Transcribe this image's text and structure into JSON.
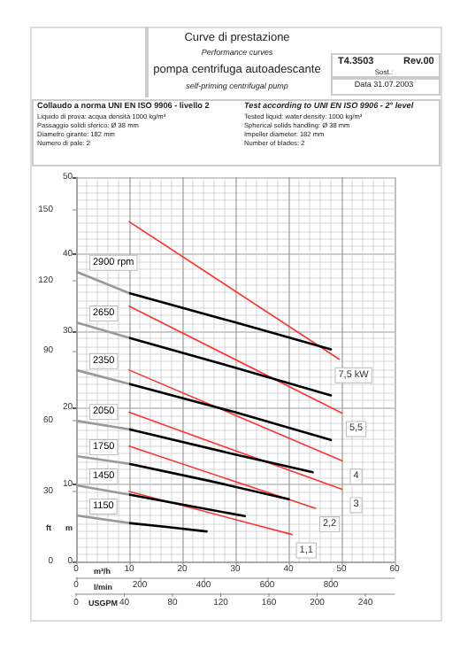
{
  "chart_data": {
    "type": "line",
    "title": "Curve di prestazione",
    "subtitle": "Performance curves",
    "xlabel": "m³/h",
    "x2label": "l/min",
    "ylabel": "m",
    "y2label": "ft",
    "annotations": [
      "pompa centrifuga autoadescante",
      "self-priming centrifugal pump",
      "T4.3503",
      "Rev.00",
      "Sost.:",
      "Data 31.07.2003",
      "Collaudo a norma UNI EN ISO 9906 - livello 2",
      "Liquido di prova: acqua densità 1000 kg/m³",
      "Passaggio solidi sferico: Ø 38 mm",
      "Diametro girante: 182 mm",
      "Numero di pale: 2",
      "Test according to UNI EN ISO 9906 - 2° level",
      "Tested liquid: water density: 1000 kg/m³",
      "Spherical solids handling: Ø 38 mm",
      "Impeller diameter: 182 mm",
      "Number of blades: 2",
      "USGPM",
      "0",
      "40",
      "80",
      "120",
      "160",
      "200",
      "240"
    ],
    "xlim": [
      0,
      60
    ],
    "xticks": [
      0,
      10,
      20,
      30,
      40,
      50,
      60
    ],
    "x2lim": [
      0,
      1000
    ],
    "x2ticks": [
      0,
      200,
      400,
      600,
      800
    ],
    "ylim": [
      0,
      50
    ],
    "yticks": [
      0,
      10,
      20,
      30,
      40,
      50
    ],
    "y2lim": [
      0,
      164.04
    ],
    "y2ticks": [
      0,
      30,
      60,
      90,
      120,
      150
    ],
    "grid": true,
    "legend": false,
    "marker": "none",
    "line_style": "solid",
    "series": [
      {
        "name": "2900 rpm",
        "color": "#000000",
        "colors": [
          "#999999",
          "#000000",
          "#000000",
          "#000000"
        ],
        "x": [
          0,
          10,
          30,
          48
        ],
        "values": [
          37.7,
          34.9,
          31.1,
          27.6
        ]
      },
      {
        "name": "2650",
        "color": "#000000",
        "colors": [
          "#999999",
          "#000000",
          "#000000",
          "#000000"
        ],
        "x": [
          0,
          10,
          30,
          48
        ],
        "values": [
          31.1,
          29.1,
          25.2,
          21.6
        ]
      },
      {
        "name": "2350",
        "color": "#000000",
        "colors": [
          "#999999",
          "#000000",
          "#000000",
          "#000000"
        ],
        "x": [
          0,
          10,
          30,
          48
        ],
        "values": [
          24.9,
          23.1,
          19.4,
          15.8
        ]
      },
      {
        "name": "2050",
        "color": "#000000",
        "colors": [
          "#999999",
          "#000000",
          "#000000",
          "#000000"
        ],
        "x": [
          0,
          10,
          30,
          44.6
        ],
        "values": [
          18.3,
          17.2,
          13.9,
          11.6
        ]
      },
      {
        "name": "1750",
        "color": "#000000",
        "colors": [
          "#999999",
          "#000000",
          "#000000",
          "#000000"
        ],
        "x": [
          0,
          10,
          25,
          40.1
        ],
        "values": [
          13.7,
          12.7,
          10.5,
          8.1
        ]
      },
      {
        "name": "1450",
        "color": "#000000",
        "colors": [
          "#999999",
          "#000000",
          "#000000",
          "#000000"
        ],
        "x": [
          0,
          10,
          20,
          31.8
        ],
        "values": [
          9.9,
          8.7,
          7.4,
          5.9
        ]
      },
      {
        "name": "1150",
        "color": "#000000",
        "colors": [
          "#999999",
          "#000000",
          "#000000",
          "#000000"
        ],
        "x": [
          0,
          10,
          17,
          24.6
        ],
        "values": [
          6.0,
          5.0,
          4.5,
          3.9
        ]
      },
      {
        "name": "7,5 kW",
        "color": "#ff3333",
        "x": [
          10,
          49.6
        ],
        "values": [
          44.2,
          26.3
        ]
      },
      {
        "name": "5,5",
        "color": "#ff3333",
        "x": [
          10,
          50.1
        ],
        "values": [
          33.2,
          19.3
        ]
      },
      {
        "name": "4",
        "color": "#ff3333",
        "x": [
          10,
          50.1
        ],
        "values": [
          24.9,
          13.1
        ]
      },
      {
        "name": "3",
        "color": "#ff3333",
        "x": [
          10,
          50.1
        ],
        "values": [
          19.4,
          9.4
        ]
      },
      {
        "name": "2,2",
        "color": "#ff3333",
        "x": [
          10,
          45.1
        ],
        "values": [
          15.0,
          6.9
        ]
      },
      {
        "name": "1,1",
        "color": "#ff3333",
        "x": [
          10,
          40.7
        ],
        "values": [
          9.1,
          3.5
        ]
      }
    ]
  }
}
